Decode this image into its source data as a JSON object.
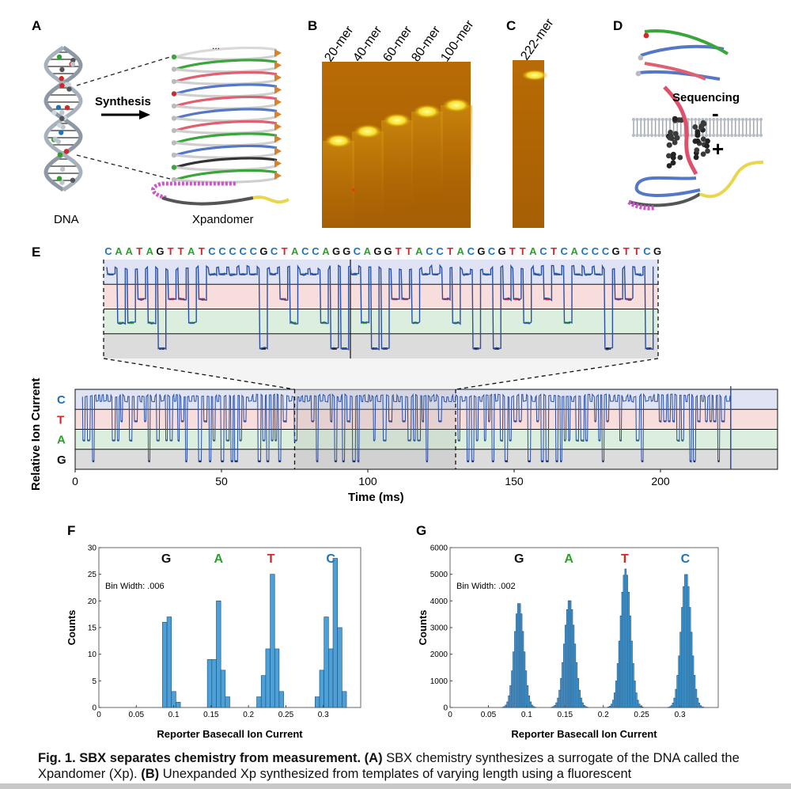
{
  "panels": {
    "A": {
      "label": "A",
      "arrow_text": "Synthesis",
      "left_caption": "DNA",
      "right_caption": "Xpandomer",
      "ellipsis": "..."
    },
    "B": {
      "label": "B",
      "lanes": [
        "20-mer",
        "40-mer",
        "60-mer",
        "80-mer",
        "100-mer"
      ]
    },
    "C": {
      "label": "C",
      "lanes": [
        "222-mer"
      ]
    },
    "D": {
      "label": "D",
      "title": "Sequencing",
      "minus": "-",
      "plus": "+"
    },
    "E": {
      "label": "E",
      "sequence": "CAATAGTTATCCCCCGCTACCAGGCAGGTTACCTACGCGTTACTCACCCGTTCG",
      "base_colors": {
        "C": "#1f73b7",
        "A": "#2ca02c",
        "T": "#d62728",
        "G": "#111111"
      },
      "levels": [
        "C",
        "T",
        "A",
        "G"
      ],
      "band_colors": {
        "C": "#dfe3f3",
        "T": "#f8dddd",
        "A": "#dcefdf",
        "G": "#dcdcdc"
      },
      "ylabel": "Relative Ion Current",
      "xlabel": "Time (ms)",
      "xticks": [
        "0",
        "50",
        "100",
        "150",
        "200"
      ],
      "zoom_range_ms": [
        75,
        130
      ]
    },
    "F": {
      "label": "F",
      "bin_note": "Bin Width: .006"
    },
    "G": {
      "label": "G",
      "bin_note": "Bin Width: .002"
    }
  },
  "chart_data": [
    {
      "type": "bar",
      "panel": "F",
      "xlabel": "Reporter Basecall Ion Current",
      "ylabel": "Counts",
      "xlim": [
        0,
        0.35
      ],
      "ylim": [
        0,
        30
      ],
      "xticks": [
        "0",
        "0.05",
        "0.1",
        "0.15",
        "0.2",
        "0.25",
        "0.3"
      ],
      "yticks": [
        "0",
        "5",
        "10",
        "15",
        "20",
        "25",
        "30"
      ],
      "peak_labels": [
        {
          "text": "G",
          "x": 0.09,
          "color": "#111111"
        },
        {
          "text": "A",
          "x": 0.16,
          "color": "#2ca02c"
        },
        {
          "text": "T",
          "x": 0.23,
          "color": "#d62728"
        },
        {
          "text": "C",
          "x": 0.31,
          "color": "#1f73b7"
        }
      ],
      "bar_width": 0.006,
      "bars": [
        [
          0.085,
          16
        ],
        [
          0.091,
          17
        ],
        [
          0.097,
          3
        ],
        [
          0.103,
          1
        ],
        [
          0.145,
          9
        ],
        [
          0.151,
          9
        ],
        [
          0.157,
          20
        ],
        [
          0.163,
          7
        ],
        [
          0.169,
          2
        ],
        [
          0.211,
          2
        ],
        [
          0.217,
          6
        ],
        [
          0.223,
          11
        ],
        [
          0.229,
          25
        ],
        [
          0.235,
          11
        ],
        [
          0.241,
          3
        ],
        [
          0.289,
          2
        ],
        [
          0.295,
          7
        ],
        [
          0.301,
          17
        ],
        [
          0.307,
          11
        ],
        [
          0.313,
          28
        ],
        [
          0.319,
          15
        ],
        [
          0.325,
          3
        ]
      ]
    },
    {
      "type": "bar",
      "panel": "G",
      "xlabel": "Reporter Basecall Ion Current",
      "ylabel": "Counts",
      "xlim": [
        0,
        0.35
      ],
      "ylim": [
        0,
        6000
      ],
      "xticks": [
        "0",
        "0.05",
        "0.1",
        "0.15",
        "0.2",
        "0.25",
        "0.3"
      ],
      "yticks": [
        "0",
        "1000",
        "2000",
        "3000",
        "4000",
        "5000",
        "6000"
      ],
      "peak_labels": [
        {
          "text": "G",
          "x": 0.09,
          "color": "#111111"
        },
        {
          "text": "A",
          "x": 0.155,
          "color": "#2ca02c"
        },
        {
          "text": "T",
          "x": 0.228,
          "color": "#d62728"
        },
        {
          "text": "C",
          "x": 0.307,
          "color": "#1f73b7"
        }
      ],
      "bar_width": 0.002,
      "peaks": [
        {
          "center": 0.089,
          "height": 3950,
          "sigma": 0.0062
        },
        {
          "center": 0.155,
          "height": 4050,
          "sigma": 0.0068
        },
        {
          "center": 0.228,
          "height": 5200,
          "sigma": 0.0066
        },
        {
          "center": 0.307,
          "height": 5050,
          "sigma": 0.0065
        }
      ]
    }
  ],
  "caption": {
    "fig": "Fig. 1. SBX separates chemistry from measurement.",
    "a_label": "(A)",
    "a_text": " SBX chemistry synthesizes a surrogate of the DNA called the Xpandomer (Xp).  ",
    "b_label": "(B)",
    "b_text": " Unexpanded Xp synthesized from templates of varying length using a fluorescent"
  }
}
